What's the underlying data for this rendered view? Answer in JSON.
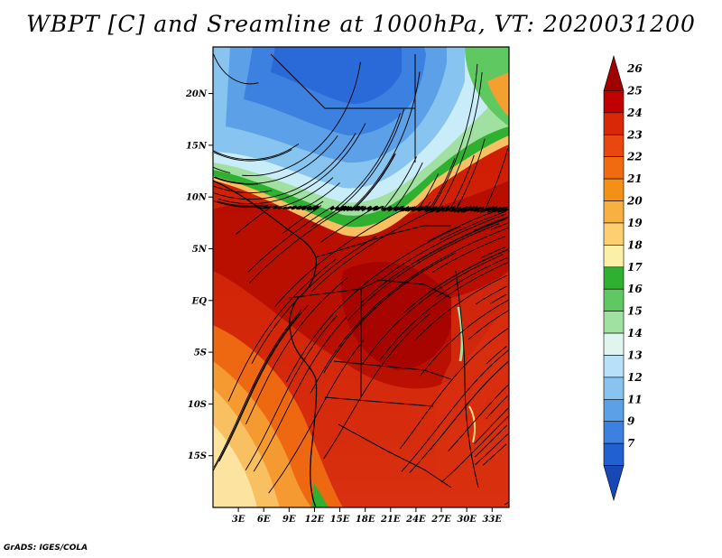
{
  "title": "WBPT [C] and Sreamline at 1000hPa, VT: 2020031200",
  "credit": "GrADS: IGES/COLA",
  "map": {
    "lat_labels": [
      "20N",
      "15N",
      "10N",
      "5N",
      "EQ",
      "5S",
      "10S",
      "15S"
    ],
    "lat_values": [
      20,
      15,
      10,
      5,
      0,
      -5,
      -10,
      -15
    ],
    "lon_labels": [
      "3E",
      "6E",
      "9E",
      "12E",
      "15E",
      "18E",
      "21E",
      "24E",
      "27E",
      "30E",
      "33E"
    ],
    "lon_values": [
      3,
      6,
      9,
      12,
      15,
      18,
      21,
      24,
      27,
      30,
      33
    ],
    "lat_range": [
      -20,
      24.5
    ],
    "lon_range": [
      0,
      35
    ]
  },
  "colorbar": {
    "labels": [
      "26",
      "25",
      "24",
      "23",
      "22",
      "21",
      "20",
      "19",
      "18",
      "17",
      "16",
      "15",
      "14",
      "13",
      "12",
      "11",
      "9",
      "7"
    ],
    "colors": [
      "#a00000",
      "#c00000",
      "#d82808",
      "#e84810",
      "#f06a10",
      "#f49018",
      "#f8b040",
      "#fcd070",
      "#fcf0a8",
      "#30b030",
      "#60c860",
      "#a0e0a0",
      "#e0f4f0",
      "#b8e0f8",
      "#88c4f0",
      "#5ca0e8",
      "#3c80e0",
      "#2060d0",
      "#1848b8"
    ]
  },
  "colors": {
    "hot": "#cc1800",
    "cold": "#2a6ad8"
  }
}
